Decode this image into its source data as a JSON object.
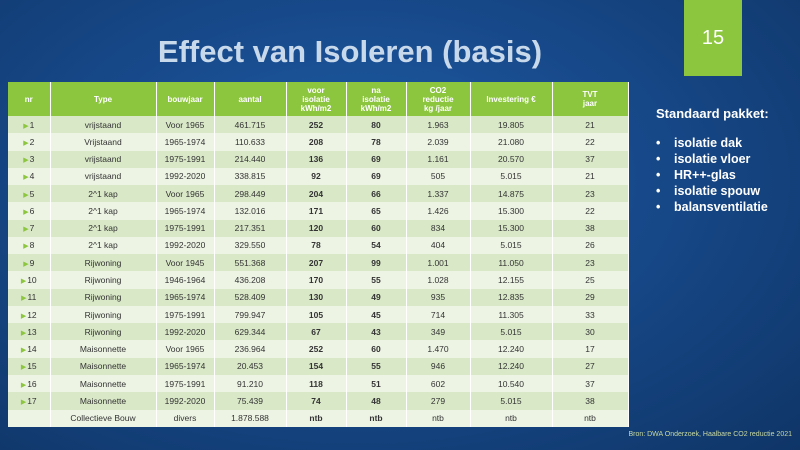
{
  "title": "Effect van Isoleren (basis)",
  "page_number": "15",
  "columns": {
    "nr": "nr",
    "type": "Type",
    "bouwjaar": "bouwjaar",
    "aantal": "aantal",
    "voor_isolatie": [
      "voor",
      "isolatie",
      "kWh/m2"
    ],
    "na_isolatie": [
      "na",
      "isolatie",
      "kWh/m2"
    ],
    "co2": [
      "CO2",
      "reductie",
      "kg /jaar"
    ],
    "investering": "Investering €",
    "tvt": [
      "TVT",
      "jaar"
    ]
  },
  "rows": [
    {
      "nr": "1",
      "type": "vrijstaand",
      "bouwjaar": "Voor 1965",
      "aantal": "461.715",
      "voor": "252",
      "na": "80",
      "co2": "1.963",
      "inv": "19.805",
      "tvt": "21"
    },
    {
      "nr": "2",
      "type": "Vrijstaand",
      "bouwjaar": "1965-1974",
      "aantal": "110.633",
      "voor": "208",
      "na": "78",
      "co2": "2.039",
      "inv": "21.080",
      "tvt": "22"
    },
    {
      "nr": "3",
      "type": "vrijstaand",
      "bouwjaar": "1975-1991",
      "aantal": "214.440",
      "voor": "136",
      "na": "69",
      "co2": "1.161",
      "inv": "20.570",
      "tvt": "37"
    },
    {
      "nr": "4",
      "type": "vrijstaand",
      "bouwjaar": "1992-2020",
      "aantal": "338.815",
      "voor": "92",
      "na": "69",
      "co2": "505",
      "inv": "5.015",
      "tvt": "21"
    },
    {
      "nr": "5",
      "type": "2^1 kap",
      "bouwjaar": "Voor 1965",
      "aantal": "298.449",
      "voor": "204",
      "na": "66",
      "co2": "1.337",
      "inv": "14.875",
      "tvt": "23"
    },
    {
      "nr": "6",
      "type": "2^1 kap",
      "bouwjaar": "1965-1974",
      "aantal": "132.016",
      "voor": "171",
      "na": "65",
      "co2": "1.426",
      "inv": "15.300",
      "tvt": "22"
    },
    {
      "nr": "7",
      "type": "2^1 kap",
      "bouwjaar": "1975-1991",
      "aantal": "217.351",
      "voor": "120",
      "na": "60",
      "co2": "834",
      "inv": "15.300",
      "tvt": "38"
    },
    {
      "nr": "8",
      "type": "2^1 kap",
      "bouwjaar": "1992-2020",
      "aantal": "329.550",
      "voor": "78",
      "na": "54",
      "co2": "404",
      "inv": "5.015",
      "tvt": "26"
    },
    {
      "nr": "9",
      "type": "Rijwoning",
      "bouwjaar": "Voor 1945",
      "aantal": "551.368",
      "voor": "207",
      "na": "99",
      "co2": "1.001",
      "inv": "11.050",
      "tvt": "23"
    },
    {
      "nr": "10",
      "type": "Rijwoning",
      "bouwjaar": "1946-1964",
      "aantal": "436.208",
      "voor": "170",
      "na": "55",
      "co2": "1.028",
      "inv": "12.155",
      "tvt": "25"
    },
    {
      "nr": "11",
      "type": "Rijwoning",
      "bouwjaar": "1965-1974",
      "aantal": "528.409",
      "voor": "130",
      "na": "49",
      "co2": "935",
      "inv": "12.835",
      "tvt": "29"
    },
    {
      "nr": "12",
      "type": "Rijwoning",
      "bouwjaar": "1975-1991",
      "aantal": "799.947",
      "voor": "105",
      "na": "45",
      "co2": "714",
      "inv": "11.305",
      "tvt": "33"
    },
    {
      "nr": "13",
      "type": "Rijwoning",
      "bouwjaar": "1992-2020",
      "aantal": "629.344",
      "voor": "67",
      "na": "43",
      "co2": "349",
      "inv": "5.015",
      "tvt": "30"
    },
    {
      "nr": "14",
      "type": "Maisonnette",
      "bouwjaar": "Voor 1965",
      "aantal": "236.964",
      "voor": "252",
      "na": "60",
      "co2": "1.470",
      "inv": "12.240",
      "tvt": "17"
    },
    {
      "nr": "15",
      "type": "Maisonnette",
      "bouwjaar": "1965-1974",
      "aantal": "20.453",
      "voor": "154",
      "na": "55",
      "co2": "946",
      "inv": "12.240",
      "tvt": "27"
    },
    {
      "nr": "16",
      "type": "Maisonnette",
      "bouwjaar": "1975-1991",
      "aantal": "91.210",
      "voor": "118",
      "na": "51",
      "co2": "602",
      "inv": "10.540",
      "tvt": "37"
    },
    {
      "nr": "17",
      "type": "Maisonnette",
      "bouwjaar": "1992-2020",
      "aantal": "75.439",
      "voor": "74",
      "na": "48",
      "co2": "279",
      "inv": "5.015",
      "tvt": "38"
    },
    {
      "nr": "",
      "type": "Collectieve Bouw",
      "bouwjaar": "divers",
      "aantal": "1.878.588",
      "voor": "ntb",
      "na": "ntb",
      "co2": "ntb",
      "inv": "ntb",
      "tvt": "ntb"
    }
  ],
  "sidebar": {
    "heading": "Standaard pakket:",
    "items": [
      "isolatie dak",
      "isolatie vloer",
      "HR++-glas",
      "isolatie spouw",
      "balansventilatie"
    ]
  },
  "source": "Bron: DWA Onderzoek, Haalbare CO2 reductie 2021",
  "colors": {
    "accent": "#8cc63f",
    "background": "#17498a"
  }
}
